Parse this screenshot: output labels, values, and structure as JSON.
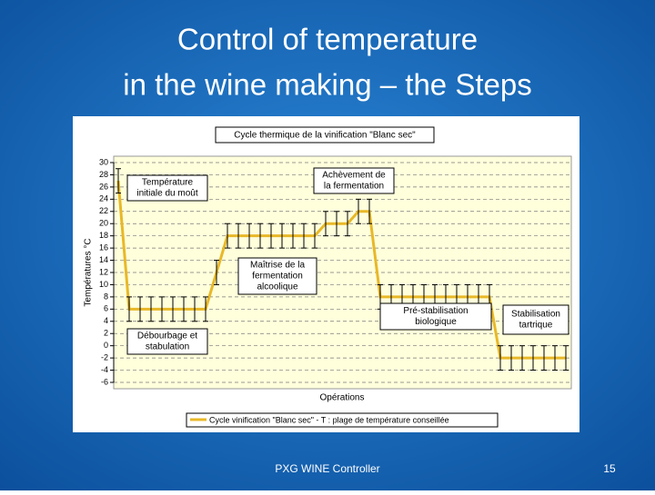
{
  "slide": {
    "title": [
      "Control of temperature",
      "in the wine making – the Steps"
    ],
    "footer": "PXG WINE Controller",
    "page_number": "15"
  },
  "chart_data": {
    "type": "line",
    "title": "Cycle thermique de la vinification \"Blanc sec\"",
    "y_label": "Températures °C",
    "x_label": "Opérations",
    "categories": [
      null,
      null,
      null,
      null,
      null,
      null,
      null,
      null,
      null,
      null,
      null,
      null,
      null,
      null,
      null,
      null,
      null,
      null,
      null,
      null,
      null,
      null,
      null,
      null,
      null,
      null,
      null,
      null,
      null,
      null,
      null,
      null,
      null,
      null,
      null,
      null,
      null,
      null,
      null,
      null,
      null,
      null
    ],
    "series": [
      {
        "name": "Cycle vinification \"Blanc sec\" - T : plage de température conseillée",
        "color": "#e8b828",
        "values": [
          27,
          6,
          6,
          6,
          6,
          6,
          6,
          6,
          6,
          12,
          18,
          18,
          18,
          18,
          18,
          18,
          18,
          18,
          18,
          20,
          20,
          20,
          22,
          22,
          8,
          8,
          8,
          8,
          8,
          8,
          8,
          8,
          8,
          8,
          8,
          -2,
          -2,
          -2,
          -2,
          -2,
          -2,
          -2
        ],
        "error": 2
      }
    ],
    "ylim": [
      -6,
      30
    ],
    "yticks": [
      -6,
      -4,
      -2,
      0,
      2,
      4,
      6,
      8,
      10,
      12,
      14,
      16,
      18,
      20,
      22,
      24,
      26,
      28,
      30
    ],
    "grid": true,
    "legend": "bottom",
    "annotations": [
      {
        "lines": [
          "Température",
          "initiale du moût"
        ]
      },
      {
        "lines": [
          "Achèvement de",
          "la fermentation"
        ]
      },
      {
        "lines": [
          "Maîtrise de la",
          "fermentation",
          "alcoolique"
        ]
      },
      {
        "lines": [
          "Pré-stabilisation",
          "biologique"
        ]
      },
      {
        "lines": [
          "Stabilisation",
          "tartrique"
        ]
      },
      {
        "lines": [
          "Débourbage et",
          "stabulation"
        ]
      }
    ]
  }
}
